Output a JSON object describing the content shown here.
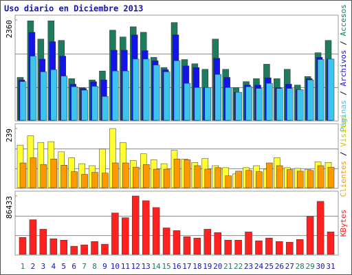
{
  "chart_data": [
    {
      "type": "bar",
      "title": "Uso diario en Diciembre 2013",
      "legend_separator": " / ",
      "ylim": [
        0,
        2360
      ],
      "yticks": [
        2360
      ],
      "series": [
        {
          "name": "Páginas",
          "color": "#3cc4ee",
          "values": [
            910,
            1510,
            1140,
            1190,
            1040,
            790,
            710,
            800,
            560,
            1160,
            1160,
            1440,
            1440,
            1300,
            1140,
            1400,
            870,
            770,
            770,
            1080,
            770,
            660,
            790,
            750,
            870,
            750,
            750,
            720,
            950,
            1430,
            1440
          ]
        },
        {
          "name": "Archivos",
          "color": "#1414e6",
          "values": [
            950,
            2070,
            1440,
            1850,
            1510,
            850,
            750,
            910,
            950,
            1650,
            1650,
            2010,
            1640,
            1400,
            1190,
            2010,
            1280,
            1240,
            770,
            1460,
            1010,
            660,
            830,
            830,
            1000,
            770,
            850,
            720,
            980,
            1480,
            1440
          ]
        },
        {
          "name": "Accesos",
          "color": "#1e7b5e",
          "values": [
            1010,
            2340,
            1910,
            2340,
            1880,
            980,
            770,
            950,
            1160,
            2120,
            1960,
            2200,
            2070,
            1480,
            1240,
            2300,
            1430,
            1330,
            1200,
            1910,
            1200,
            770,
            910,
            980,
            1320,
            980,
            1200,
            830,
            1030,
            1590,
            1880
          ]
        }
      ]
    },
    {
      "type": "bar",
      "legend_separator": " / ",
      "ylim": [
        0,
        239
      ],
      "yticks": [
        239
      ],
      "series": [
        {
          "name": "Clientes",
          "color": "#ff9900",
          "values": [
            100,
            121,
            94,
            116,
            91,
            65,
            54,
            62,
            59,
            100,
            100,
            83,
            94,
            75,
            75,
            116,
            113,
            89,
            75,
            81,
            48,
            67,
            70,
            65,
            100,
            89,
            73,
            67,
            70,
            89,
            83
          ]
        },
        {
          "name": "Visitas",
          "color": "#ffff33",
          "values": [
            172,
            210,
            183,
            186,
            145,
            121,
            97,
            89,
            156,
            239,
            183,
            110,
            137,
            113,
            97,
            151,
            116,
            102,
            118,
            89,
            81,
            56,
            81,
            89,
            75,
            121,
            81,
            78,
            73,
            105,
            102
          ]
        }
      ]
    },
    {
      "type": "bar",
      "ylim": [
        0,
        86433
      ],
      "yticks": [
        86433
      ],
      "series": [
        {
          "name": "KBytes",
          "color": "#ff2020",
          "values": [
            25100,
            51300,
            37200,
            23100,
            21100,
            12100,
            14100,
            19100,
            15100,
            61300,
            54300,
            86433,
            79400,
            69300,
            39200,
            35200,
            26100,
            24100,
            37200,
            32200,
            21100,
            21100,
            33200,
            20100,
            24100,
            19100,
            18100,
            22100,
            56300,
            78400,
            33200
          ]
        }
      ],
      "categories": [
        "1",
        "2",
        "3",
        "4",
        "5",
        "6",
        "7",
        "8",
        "9",
        "10",
        "11",
        "12",
        "13",
        "14",
        "15",
        "16",
        "17",
        "18",
        "19",
        "20",
        "21",
        "22",
        "23",
        "24",
        "25",
        "26",
        "27",
        "28",
        "29",
        "30",
        "31"
      ],
      "category_colors": [
        "#1e7b5e",
        "#1414aa",
        "#1414aa",
        "#1414aa",
        "#1414aa",
        "#1414aa",
        "#1e7b5e",
        "#1e7b5e",
        "#1414aa",
        "#1414aa",
        "#1414aa",
        "#1414aa",
        "#1414aa",
        "#1e7b5e",
        "#1e7b5e",
        "#1414aa",
        "#1414aa",
        "#1414aa",
        "#1414aa",
        "#1414aa",
        "#1e7b5e",
        "#1e7b5e",
        "#1414aa",
        "#1414aa",
        "#1414aa",
        "#1414aa",
        "#1414aa",
        "#1e7b5e",
        "#1e7b5e",
        "#1414aa",
        "#1414aa"
      ]
    }
  ]
}
